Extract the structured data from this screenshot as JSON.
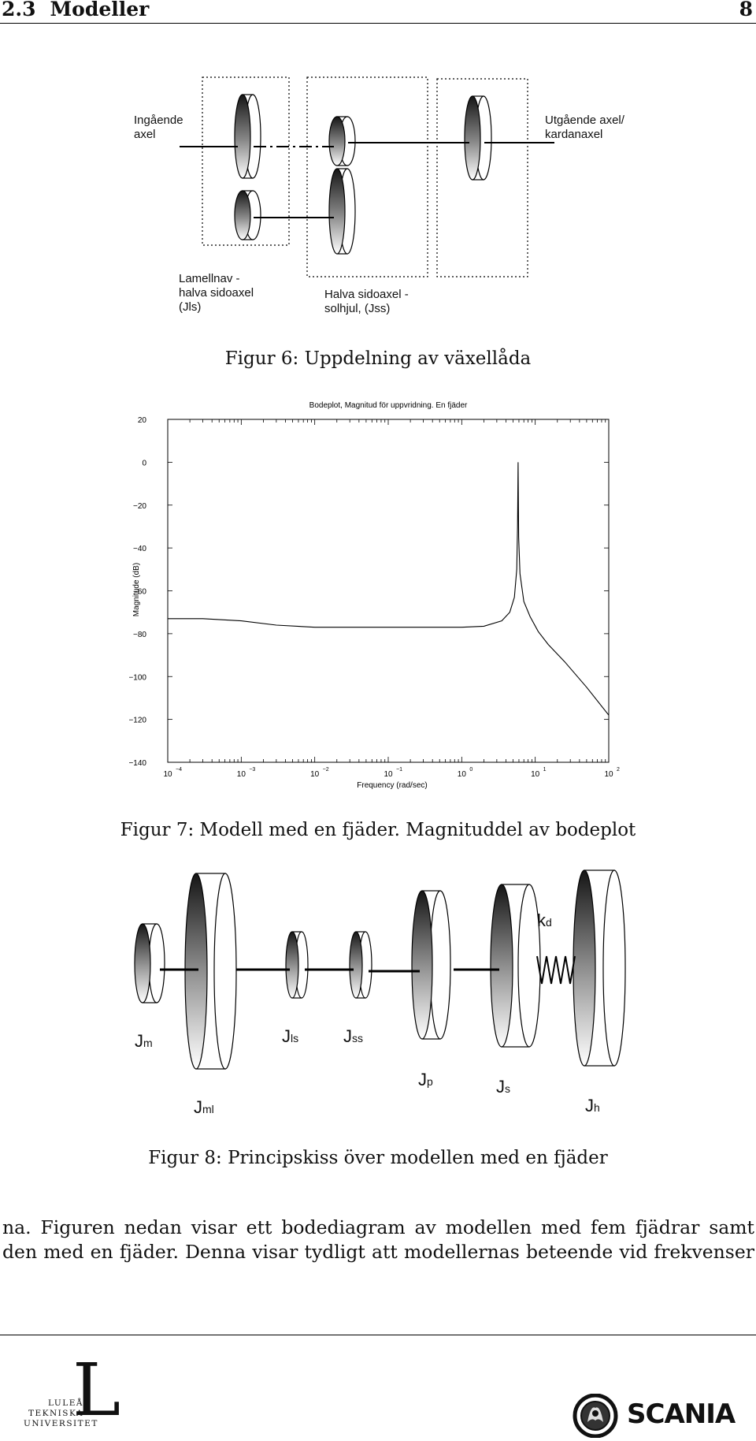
{
  "header": {
    "section_number": "2.3",
    "section_title": "Modeller",
    "page_number": "8"
  },
  "figure6": {
    "caption": "Figur 6: Uppdelning av växellåda",
    "labels": {
      "input_1": "Ingående",
      "input_2": "axel",
      "output_1": "Utgående axel/",
      "output_2": "kardanaxel",
      "lamell_1": "Lamellnav -",
      "lamell_2": "halva sidoaxel",
      "lamell_3": "(Jls)",
      "halva_1": "Halva sidoaxel -",
      "halva_2": "solhjul, (Jss)"
    }
  },
  "figure7": {
    "caption": "Figur 7: Modell med en fjäder. Magnituddel av bodeplot",
    "chart_data": {
      "type": "line",
      "title": "Bodeplot, Magnitud för uppvridning. En fjäder",
      "xlabel": "Frequency (rad/sec)",
      "ylabel": "Magnitude (dB)",
      "xscale": "log",
      "xlim": [
        0.0001,
        100
      ],
      "ylim": [
        -140,
        20
      ],
      "yticks": [
        20,
        0,
        -20,
        -40,
        -60,
        -80,
        -100,
        -120,
        -140
      ],
      "ytick_labels": [
        "20",
        "0",
        "−20",
        "−40",
        "−60",
        "−80",
        "−100",
        "−120",
        "−140"
      ],
      "xtick_exponents": [
        "−4",
        "−3",
        "−2",
        "−1",
        "0",
        "1",
        "2"
      ],
      "xtick_base": "10",
      "grid": false,
      "series": [
        {
          "x": [
            0.0001,
            0.0003,
            0.001,
            0.003,
            0.01,
            0.03,
            0.1,
            0.3,
            1,
            2,
            3.5,
            4.5,
            5.2,
            5.6,
            5.75,
            5.85,
            5.95,
            6.2,
            7,
            8.5,
            11,
            15,
            25,
            50,
            100
          ],
          "y": [
            -73,
            -73,
            -74,
            -76,
            -77,
            -77,
            -77,
            -77,
            -77,
            -76.5,
            -74,
            -70,
            -63,
            -50,
            -30,
            0,
            -35,
            -52,
            -65,
            -72,
            -79,
            -85,
            -93,
            -105,
            -118
          ]
        }
      ]
    }
  },
  "figure8": {
    "caption": "Figur 8: Principskiss över modellen med en fjäder",
    "labels": {
      "jm_J": "J",
      "jm_sub": "m",
      "jml_J": "J",
      "jml_sub": "ml",
      "jls_J": "J",
      "jls_sub": "ls",
      "jss_J": "J",
      "jss_sub": "ss",
      "jp_J": "J",
      "jp_sub": "p",
      "js_J": "J",
      "js_sub": "s",
      "jh_J": "J",
      "jh_sub": "h",
      "kd_k": "k",
      "kd_sub": "d"
    }
  },
  "body": {
    "line1": "na. Figuren nedan visar ett bodediagram av modellen med fem fjädrar samt",
    "line2": "den med en fjäder. Denna visar tydligt att modellernas beteende vid frekvenser"
  },
  "footer": {
    "ltu_line1": "LULEÅ",
    "ltu_line2": "TEKNISKA",
    "ltu_line3": "UNIVERSITET",
    "ltu_mark": "L",
    "scania_word": "SCANIA"
  }
}
